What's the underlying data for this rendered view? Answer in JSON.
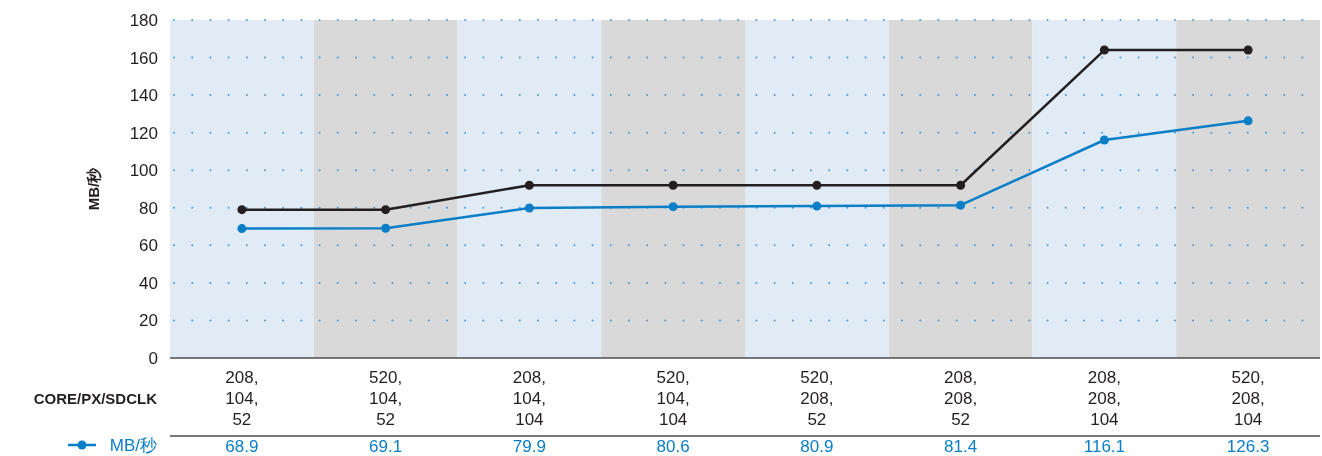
{
  "chart_data": {
    "type": "line",
    "ylabel": "MB/秒",
    "xlabel": "CORE/PX/SDCLK",
    "categories": [
      "208,\n104,\n52",
      "520,\n104,\n52",
      "208,\n104,\n104",
      "520,\n104,\n104",
      "520,\n208,\n52",
      "208,\n208,\n52",
      "208,\n208,\n104",
      "520,\n208,\n104"
    ],
    "series": [
      {
        "color": "#231f20",
        "values": [
          79,
          79,
          92,
          92,
          92,
          92,
          164,
          164
        ]
      },
      {
        "name": "MB/秒",
        "color": "#0a7ec6",
        "values": [
          68.9,
          69.1,
          79.9,
          80.6,
          80.9,
          81.4,
          116.1,
          126.3
        ],
        "value_labels": [
          "68.9",
          "69.1",
          "79.9",
          "80.6",
          "80.9",
          "81.4",
          "116.1",
          "126.3"
        ]
      }
    ],
    "ylim": [
      0,
      180
    ],
    "yticks": [
      0,
      20,
      40,
      60,
      80,
      100,
      120,
      140,
      160,
      180
    ],
    "grid": "y",
    "legend": "bottom left",
    "marker": "circle"
  }
}
